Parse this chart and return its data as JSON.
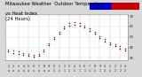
{
  "title_left": "Milwaukee Weather  Outdoor Temperature",
  "title_right": "vs Heat Index\n(24 Hours)",
  "title_fontsize": 3.8,
  "bg_color": "#d8d8d8",
  "plot_bg_color": "#ffffff",
  "red_color": "#cc0000",
  "blue_color": "#0000cc",
  "temp_data": [
    [
      1,
      38
    ],
    [
      2,
      37
    ],
    [
      3,
      36
    ],
    [
      4,
      35
    ],
    [
      5,
      34
    ],
    [
      6,
      33
    ],
    [
      7,
      34
    ],
    [
      8,
      38
    ],
    [
      9,
      44
    ],
    [
      10,
      50
    ],
    [
      11,
      55
    ],
    [
      12,
      60
    ],
    [
      13,
      63
    ],
    [
      14,
      64
    ],
    [
      15,
      63
    ],
    [
      16,
      61
    ],
    [
      17,
      58
    ],
    [
      18,
      55
    ],
    [
      19,
      51
    ],
    [
      20,
      48
    ],
    [
      21,
      45
    ],
    [
      22,
      43
    ],
    [
      23,
      41
    ],
    [
      24,
      39
    ]
  ],
  "heat_data": [
    [
      1,
      36
    ],
    [
      2,
      35
    ],
    [
      3,
      34
    ],
    [
      4,
      33
    ],
    [
      5,
      32
    ],
    [
      6,
      31
    ],
    [
      7,
      32
    ],
    [
      8,
      36
    ],
    [
      9,
      42
    ],
    [
      10,
      48
    ],
    [
      11,
      53
    ],
    [
      12,
      58
    ],
    [
      13,
      61
    ],
    [
      14,
      62
    ],
    [
      15,
      61
    ],
    [
      16,
      59
    ],
    [
      17,
      56
    ],
    [
      18,
      53
    ],
    [
      19,
      49
    ],
    [
      20,
      46
    ],
    [
      21,
      43
    ],
    [
      22,
      41
    ],
    [
      23,
      39
    ],
    [
      24,
      37
    ]
  ],
  "ylim": [
    28,
    72
  ],
  "ytick_values": [
    30,
    40,
    50,
    60,
    70
  ],
  "ytick_labels": [
    "30",
    "40",
    "50",
    "60",
    "70"
  ],
  "xtick_positions": [
    1,
    2,
    3,
    4,
    5,
    6,
    7,
    8,
    9,
    10,
    11,
    12,
    13,
    14,
    15,
    16,
    17,
    18,
    19,
    20,
    21,
    22,
    23,
    24
  ],
  "xtick_labels_row1": [
    "1",
    "2",
    "3",
    "4",
    "5",
    "6",
    "7",
    "8",
    "9",
    "0",
    "1",
    "2",
    "3",
    "4",
    "5",
    "6",
    "7",
    "8",
    "9",
    "0",
    "1",
    "2",
    "3",
    "4"
  ],
  "xtick_labels_row2": [
    "a",
    "a",
    "a",
    "a",
    "a",
    "a",
    "a",
    "a",
    "a",
    "1",
    "1",
    "1",
    "1",
    "1",
    "1",
    "1",
    "1",
    "1",
    "1",
    "2",
    "2",
    "2",
    "2",
    "2"
  ],
  "vgrid_positions": [
    3,
    5,
    7,
    9,
    11,
    13,
    15,
    17,
    19,
    21,
    23
  ],
  "marker_size": 1.2,
  "legend_blue": "#0000cc",
  "legend_red": "#cc0000"
}
